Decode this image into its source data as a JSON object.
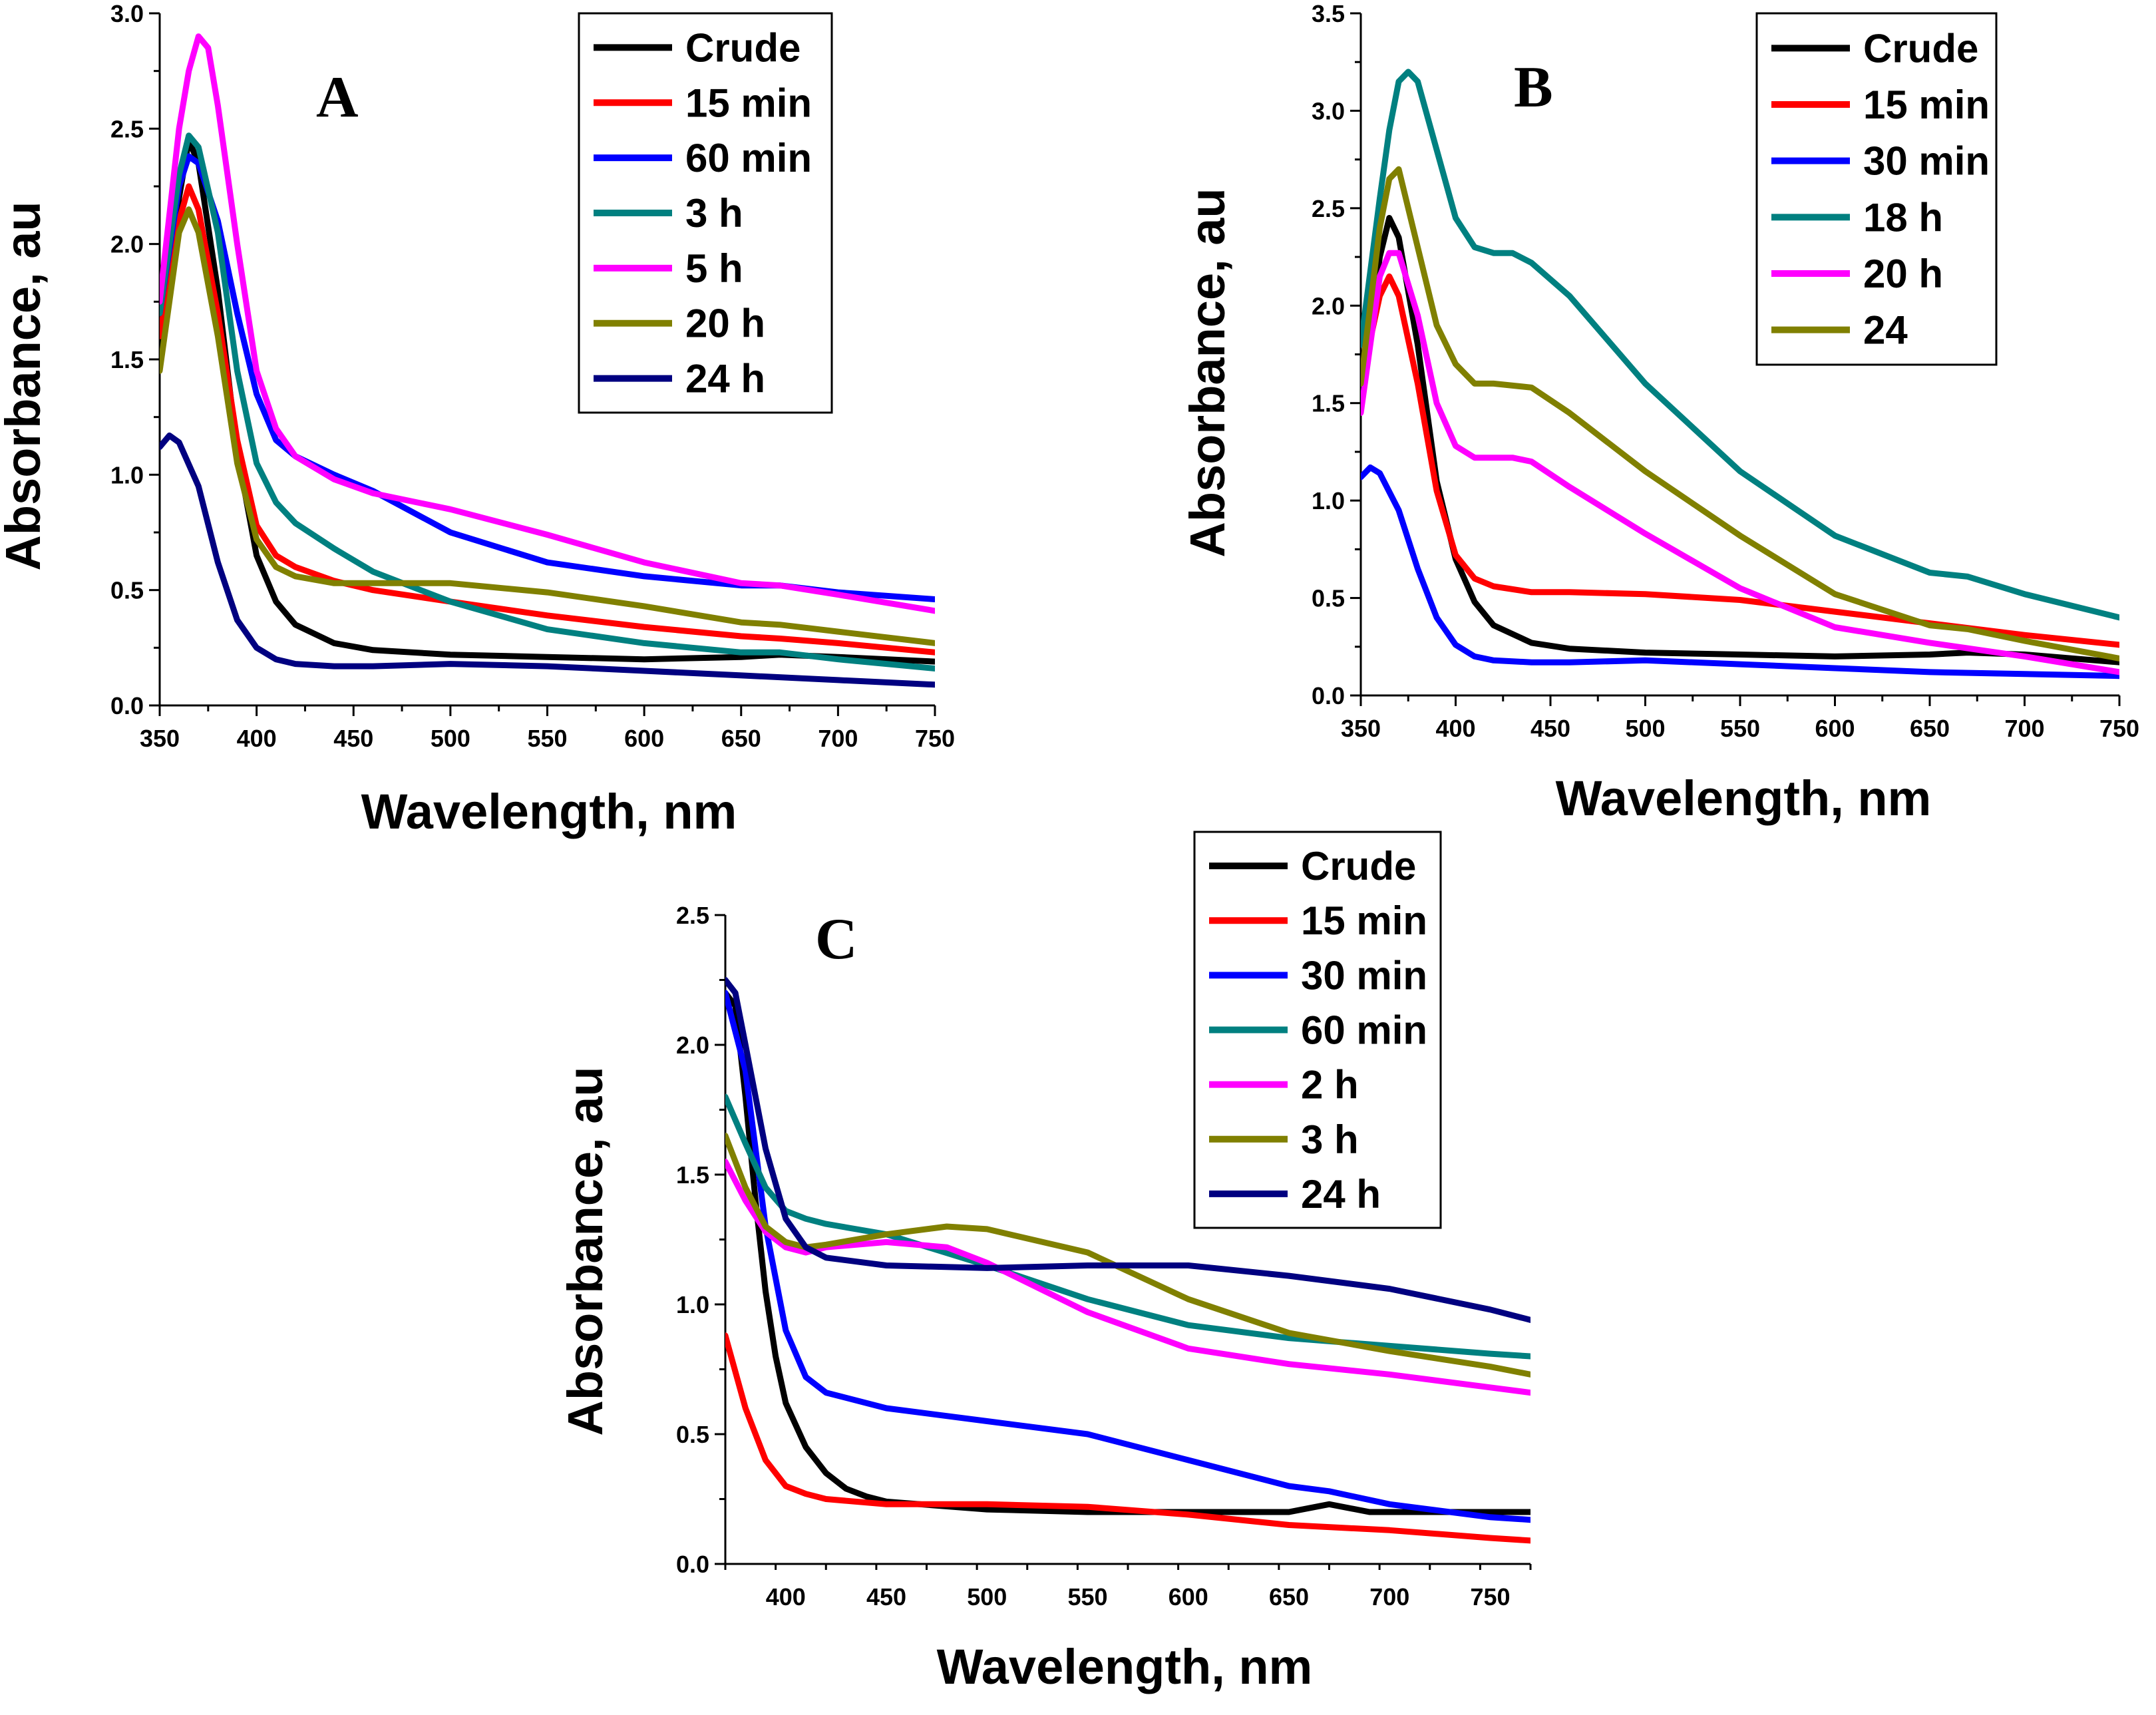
{
  "chart_data": [
    {
      "type": "line",
      "panel_label": "A",
      "xlabel": "Wavelength, nm",
      "ylabel": "Absorbance, au",
      "xlim": [
        350,
        750
      ],
      "ylim": [
        0.0,
        3.0
      ],
      "xticks": [
        350,
        400,
        450,
        500,
        550,
        600,
        650,
        700,
        750
      ],
      "yticks": [
        0.0,
        0.5,
        1.0,
        1.5,
        2.0,
        2.5,
        3.0
      ],
      "ytick_labels": [
        "0.0",
        "0.5",
        "1.0",
        "1.5",
        "2.0",
        "2.5",
        "3.0"
      ],
      "grid": false,
      "legend_position": "top-right",
      "series": [
        {
          "name": "Crude",
          "color": "#000000",
          "x": [
            350,
            360,
            365,
            370,
            380,
            390,
            400,
            410,
            420,
            440,
            460,
            500,
            550,
            600,
            650,
            670,
            700,
            750
          ],
          "y": [
            1.5,
            2.2,
            2.45,
            2.35,
            1.8,
            1.1,
            0.65,
            0.45,
            0.35,
            0.27,
            0.24,
            0.22,
            0.21,
            0.2,
            0.21,
            0.22,
            0.21,
            0.19
          ]
        },
        {
          "name": "15 min",
          "color": "#ff0000",
          "x": [
            350,
            360,
            365,
            370,
            380,
            390,
            400,
            410,
            420,
            440,
            460,
            500,
            550,
            600,
            650,
            670,
            700,
            750
          ],
          "y": [
            1.6,
            2.1,
            2.25,
            2.15,
            1.7,
            1.15,
            0.78,
            0.65,
            0.6,
            0.54,
            0.5,
            0.45,
            0.39,
            0.34,
            0.3,
            0.29,
            0.27,
            0.23
          ]
        },
        {
          "name": "60 min",
          "color": "#0000ff",
          "x": [
            350,
            360,
            365,
            370,
            380,
            390,
            400,
            410,
            420,
            440,
            460,
            500,
            550,
            600,
            650,
            670,
            700,
            750
          ],
          "y": [
            1.7,
            2.25,
            2.38,
            2.35,
            2.1,
            1.7,
            1.35,
            1.15,
            1.08,
            1.0,
            0.93,
            0.75,
            0.62,
            0.56,
            0.52,
            0.52,
            0.49,
            0.46
          ]
        },
        {
          "name": "3 h",
          "color": "#008080",
          "x": [
            350,
            360,
            365,
            370,
            380,
            390,
            400,
            410,
            420,
            440,
            460,
            500,
            550,
            600,
            650,
            670,
            700,
            750
          ],
          "y": [
            1.7,
            2.3,
            2.47,
            2.42,
            2.05,
            1.45,
            1.05,
            0.88,
            0.79,
            0.68,
            0.58,
            0.45,
            0.33,
            0.27,
            0.23,
            0.23,
            0.2,
            0.16
          ]
        },
        {
          "name": "5 h",
          "color": "#ff00ff",
          "x": [
            350,
            360,
            365,
            370,
            375,
            380,
            390,
            400,
            410,
            420,
            440,
            460,
            500,
            550,
            600,
            650,
            670,
            700,
            750
          ],
          "y": [
            1.75,
            2.5,
            2.75,
            2.9,
            2.85,
            2.6,
            2.0,
            1.45,
            1.2,
            1.08,
            0.98,
            0.92,
            0.85,
            0.74,
            0.62,
            0.53,
            0.52,
            0.48,
            0.41
          ]
        },
        {
          "name": "20 h",
          "color": "#808000",
          "x": [
            350,
            360,
            365,
            370,
            380,
            390,
            400,
            410,
            420,
            440,
            460,
            500,
            550,
            600,
            650,
            670,
            700,
            750
          ],
          "y": [
            1.45,
            2.05,
            2.15,
            2.05,
            1.6,
            1.05,
            0.72,
            0.6,
            0.56,
            0.53,
            0.53,
            0.53,
            0.49,
            0.43,
            0.36,
            0.35,
            0.32,
            0.27
          ]
        },
        {
          "name": "24 h",
          "color": "#000080",
          "x": [
            350,
            355,
            360,
            370,
            380,
            390,
            400,
            410,
            420,
            440,
            460,
            500,
            550,
            600,
            650,
            700,
            750
          ],
          "y": [
            1.12,
            1.17,
            1.14,
            0.95,
            0.62,
            0.37,
            0.25,
            0.2,
            0.18,
            0.17,
            0.17,
            0.18,
            0.17,
            0.15,
            0.13,
            0.11,
            0.09
          ]
        }
      ]
    },
    {
      "type": "line",
      "panel_label": "B",
      "xlabel": "Wavelength, nm",
      "ylabel": "Absorbance, au",
      "xlim": [
        350,
        750
      ],
      "ylim": [
        0.0,
        3.5
      ],
      "xticks": [
        350,
        400,
        450,
        500,
        550,
        600,
        650,
        700,
        750
      ],
      "yticks": [
        0.0,
        0.5,
        1.0,
        1.5,
        2.0,
        2.5,
        3.0,
        3.5
      ],
      "ytick_labels": [
        "0.0",
        "0.5",
        "1.0",
        "1.5",
        "2.0",
        "2.5",
        "3.0",
        "3.5"
      ],
      "grid": false,
      "legend_position": "top-right",
      "series": [
        {
          "name": "Crude",
          "color": "#000000",
          "x": [
            350,
            360,
            365,
            370,
            380,
            390,
            400,
            410,
            420,
            440,
            460,
            500,
            550,
            600,
            650,
            670,
            700,
            750
          ],
          "y": [
            1.5,
            2.25,
            2.45,
            2.35,
            1.8,
            1.1,
            0.7,
            0.48,
            0.36,
            0.27,
            0.24,
            0.22,
            0.21,
            0.2,
            0.21,
            0.22,
            0.21,
            0.17
          ]
        },
        {
          "name": "15 min",
          "color": "#ff0000",
          "x": [
            350,
            360,
            365,
            370,
            380,
            390,
            400,
            410,
            420,
            440,
            460,
            500,
            550,
            600,
            650,
            700,
            750
          ],
          "y": [
            1.6,
            2.05,
            2.15,
            2.05,
            1.6,
            1.05,
            0.72,
            0.6,
            0.56,
            0.53,
            0.53,
            0.52,
            0.49,
            0.43,
            0.37,
            0.31,
            0.26
          ]
        },
        {
          "name": "30 min",
          "color": "#0000ff",
          "x": [
            350,
            355,
            360,
            370,
            380,
            390,
            400,
            410,
            420,
            440,
            460,
            500,
            550,
            600,
            650,
            700,
            750
          ],
          "y": [
            1.12,
            1.17,
            1.14,
            0.95,
            0.65,
            0.4,
            0.26,
            0.2,
            0.18,
            0.17,
            0.17,
            0.18,
            0.16,
            0.14,
            0.12,
            0.11,
            0.1
          ]
        },
        {
          "name": "18 h",
          "color": "#008080",
          "x": [
            350,
            360,
            365,
            370,
            375,
            380,
            390,
            400,
            410,
            420,
            430,
            440,
            460,
            500,
            550,
            600,
            650,
            670,
            700,
            750
          ],
          "y": [
            1.8,
            2.55,
            2.9,
            3.15,
            3.2,
            3.15,
            2.8,
            2.45,
            2.3,
            2.27,
            2.27,
            2.22,
            2.05,
            1.6,
            1.15,
            0.82,
            0.63,
            0.61,
            0.52,
            0.4
          ]
        },
        {
          "name": "20 h",
          "color": "#ff00ff",
          "x": [
            350,
            360,
            365,
            370,
            380,
            390,
            400,
            410,
            420,
            430,
            440,
            460,
            500,
            550,
            600,
            650,
            700,
            750
          ],
          "y": [
            1.45,
            2.15,
            2.27,
            2.27,
            1.95,
            1.5,
            1.28,
            1.22,
            1.22,
            1.22,
            1.2,
            1.07,
            0.83,
            0.55,
            0.35,
            0.27,
            0.2,
            0.12
          ]
        },
        {
          "name": "24",
          "color": "#808000",
          "x": [
            350,
            360,
            365,
            370,
            380,
            390,
            400,
            410,
            420,
            440,
            460,
            500,
            550,
            600,
            650,
            670,
            700,
            750
          ],
          "y": [
            1.6,
            2.4,
            2.65,
            2.7,
            2.3,
            1.9,
            1.7,
            1.6,
            1.6,
            1.58,
            1.45,
            1.15,
            0.82,
            0.52,
            0.36,
            0.34,
            0.28,
            0.19
          ]
        }
      ]
    },
    {
      "type": "line",
      "panel_label": "C",
      "xlabel": "Wavelength, nm",
      "ylabel": "Absorbance, au",
      "xlim": [
        370,
        770
      ],
      "ylim": [
        0.0,
        2.5
      ],
      "xticks": [
        400,
        450,
        500,
        550,
        600,
        650,
        700,
        750
      ],
      "yticks": [
        0.0,
        0.5,
        1.0,
        1.5,
        2.0,
        2.5
      ],
      "ytick_labels": [
        "0.0",
        "0.5",
        "1.0",
        "1.5",
        "2.0",
        "2.5"
      ],
      "grid": false,
      "legend_position": "top-right",
      "series": [
        {
          "name": "Crude",
          "color": "#000000",
          "x": [
            370,
            375,
            380,
            385,
            390,
            395,
            400,
            410,
            420,
            430,
            440,
            450,
            500,
            550,
            600,
            650,
            670,
            690,
            700,
            750,
            770
          ],
          "y": [
            2.2,
            2.15,
            1.8,
            1.4,
            1.05,
            0.8,
            0.62,
            0.45,
            0.35,
            0.29,
            0.26,
            0.24,
            0.21,
            0.2,
            0.2,
            0.2,
            0.23,
            0.2,
            0.2,
            0.2,
            0.2
          ]
        },
        {
          "name": "15 min",
          "color": "#ff0000",
          "x": [
            370,
            380,
            390,
            400,
            410,
            420,
            450,
            500,
            550,
            600,
            650,
            700,
            750,
            770
          ],
          "y": [
            0.88,
            0.6,
            0.4,
            0.3,
            0.27,
            0.25,
            0.23,
            0.23,
            0.22,
            0.19,
            0.15,
            0.13,
            0.1,
            0.09
          ]
        },
        {
          "name": "30 min",
          "color": "#0000ff",
          "x": [
            370,
            380,
            390,
            400,
            410,
            420,
            450,
            500,
            550,
            600,
            650,
            670,
            700,
            750,
            770
          ],
          "y": [
            2.2,
            1.9,
            1.3,
            0.9,
            0.72,
            0.66,
            0.6,
            0.55,
            0.5,
            0.4,
            0.3,
            0.28,
            0.23,
            0.18,
            0.17
          ]
        },
        {
          "name": "60 min",
          "color": "#008080",
          "x": [
            370,
            380,
            390,
            400,
            410,
            420,
            450,
            500,
            550,
            600,
            650,
            700,
            750,
            770
          ],
          "y": [
            1.8,
            1.62,
            1.45,
            1.36,
            1.33,
            1.31,
            1.27,
            1.15,
            1.02,
            0.92,
            0.87,
            0.84,
            0.81,
            0.8
          ]
        },
        {
          "name": "2 h",
          "color": "#ff00ff",
          "x": [
            370,
            380,
            390,
            400,
            410,
            420,
            450,
            480,
            500,
            550,
            600,
            650,
            700,
            750,
            770
          ],
          "y": [
            1.55,
            1.4,
            1.28,
            1.22,
            1.2,
            1.22,
            1.24,
            1.22,
            1.16,
            0.97,
            0.83,
            0.77,
            0.73,
            0.68,
            0.66
          ]
        },
        {
          "name": "3 h",
          "color": "#808000",
          "x": [
            370,
            380,
            390,
            400,
            410,
            420,
            450,
            480,
            500,
            550,
            600,
            650,
            700,
            750,
            770
          ],
          "y": [
            1.65,
            1.45,
            1.3,
            1.24,
            1.22,
            1.23,
            1.27,
            1.3,
            1.29,
            1.2,
            1.02,
            0.89,
            0.82,
            0.76,
            0.73
          ]
        },
        {
          "name": "24 h",
          "color": "#000080",
          "x": [
            370,
            375,
            380,
            390,
            400,
            410,
            420,
            450,
            500,
            550,
            600,
            650,
            700,
            750,
            770
          ],
          "y": [
            2.25,
            2.2,
            2.0,
            1.6,
            1.33,
            1.22,
            1.18,
            1.15,
            1.14,
            1.15,
            1.15,
            1.11,
            1.06,
            0.98,
            0.94
          ]
        }
      ]
    }
  ]
}
